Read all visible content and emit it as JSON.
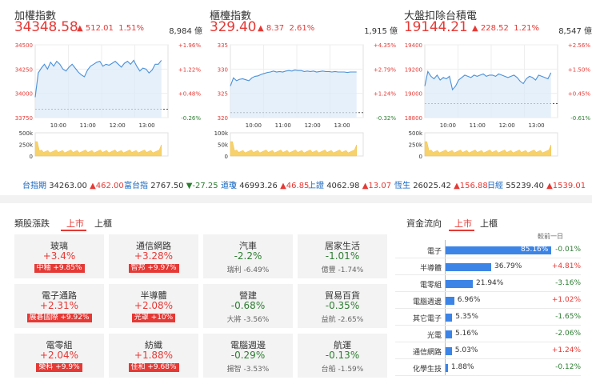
{
  "indices": [
    {
      "name": "加權指數",
      "price": "34348.58",
      "change": "512.01",
      "pct": "1.51%",
      "volume": "8,984 億",
      "y_labels": [
        "34500",
        "34250",
        "34000",
        "33750"
      ],
      "pct_labels": [
        "+1.96%",
        "+1.22%",
        "+0.48%",
        "-0.26%"
      ],
      "vol_labels": [
        "500k",
        "250k",
        "0"
      ],
      "x_labels": [
        "10:00",
        "11:00",
        "12:00",
        "13:00"
      ],
      "y_range": [
        33750,
        34500
      ],
      "prev_close": 33836.57,
      "series": [
        33960,
        34210,
        34260,
        34300,
        34250,
        34320,
        34280,
        34330,
        34300,
        34250,
        34230,
        34270,
        34300,
        34260,
        34220,
        34190,
        34170,
        34240,
        34280,
        34300,
        34320,
        34330,
        34280,
        34300,
        34290,
        34310,
        34330,
        34300,
        34270,
        34310,
        34330,
        34300,
        34340,
        34280,
        34230,
        34260,
        34250,
        34210,
        34240,
        34300,
        34300,
        34340
      ]
    },
    {
      "name": "櫃檯指數",
      "price": "329.40",
      "change": "8.37",
      "pct": "2.61%",
      "volume": "1,915 億",
      "y_labels": [
        "335",
        "330",
        "325",
        "320"
      ],
      "pct_labels": [
        "+4.35%",
        "+2.79%",
        "+1.24%",
        "-0.32%"
      ],
      "vol_labels": [
        "100k",
        "50k",
        "0"
      ],
      "x_labels": [
        "10:00",
        "11:00",
        "12:00",
        "13:00"
      ],
      "y_range": [
        320,
        335
      ],
      "prev_close": 321.03,
      "series": [
        326.5,
        328.2,
        327.6,
        327.9,
        328.0,
        327.8,
        327.6,
        328.2,
        328.5,
        328.6,
        328.9,
        329.1,
        329.3,
        329.4,
        329.6,
        329.4,
        329.5,
        329.4,
        329.6,
        329.7,
        329.6,
        329.8,
        329.7,
        329.7,
        329.5,
        329.6,
        329.5,
        329.6,
        329.4,
        329.5,
        329.6,
        329.5,
        329.5,
        329.4,
        329.5,
        329.4,
        329.4,
        329.4,
        329.3,
        329.4,
        329.4,
        329.4
      ]
    },
    {
      "name": "大盤扣除台積電",
      "price": "19144.21",
      "change": "228.52",
      "pct": "1.21%",
      "volume": "8,547 億",
      "y_labels": [
        "19400",
        "19200",
        "19000",
        "18800"
      ],
      "pct_labels": [
        "+2.56%",
        "+1.50%",
        "+0.45%",
        "-0.61%"
      ],
      "vol_labels": [
        "500k",
        "250k",
        "0"
      ],
      "x_labels": [
        "10:00",
        "11:00",
        "12:00",
        "13:00"
      ],
      "y_range": [
        18800,
        19400
      ],
      "prev_close": 18915.69,
      "series": [
        19060,
        19180,
        19140,
        19120,
        19150,
        19110,
        19130,
        19120,
        19140,
        19030,
        19060,
        19110,
        19130,
        19150,
        19140,
        19130,
        19150,
        19140,
        19150,
        19160,
        19140,
        19150,
        19150,
        19140,
        19160,
        19150,
        19140,
        19130,
        19140,
        19150,
        19130,
        19100,
        19080,
        19120,
        19140,
        19130,
        19110,
        19150,
        19140,
        19130,
        19120,
        19170
      ]
    }
  ],
  "tickers": [
    {
      "name": "台指期",
      "value": "34263.00",
      "change": "▲462.00",
      "dir": "up"
    },
    {
      "name": "富台指",
      "value": "2767.50",
      "change": "▼-27.25",
      "dir": "down"
    },
    {
      "name": "道瓊",
      "value": "46993.26",
      "change": "▲46.85",
      "dir": "up"
    },
    {
      "name": "上證",
      "value": "4062.98",
      "change": "▲13.07",
      "dir": "up"
    },
    {
      "name": "恆生",
      "value": "26025.42",
      "change": "▲156.88",
      "dir": "up"
    },
    {
      "name": "日經",
      "value": "55239.40",
      "change": "▲1539.01",
      "dir": "up"
    }
  ],
  "sector_section": {
    "title": "類股漲跌",
    "tabs": [
      "上市",
      "上櫃"
    ],
    "cards": [
      {
        "name": "玻璃",
        "pct": "+3.4%",
        "dir": "up",
        "stock": "中釉",
        "stock_pct": "+9.85%",
        "badge": true
      },
      {
        "name": "通信網路",
        "pct": "+3.28%",
        "dir": "up",
        "stock": "智邦",
        "stock_pct": "+9.97%",
        "badge": true
      },
      {
        "name": "汽車",
        "pct": "-2.2%",
        "dir": "down",
        "stock": "瑞利",
        "stock_pct": "-6.49%",
        "badge": false
      },
      {
        "name": "居家生活",
        "pct": "-1.01%",
        "dir": "down",
        "stock": "億豐",
        "stock_pct": "-1.74%",
        "badge": false
      },
      {
        "name": "電子通路",
        "pct": "+2.31%",
        "dir": "up",
        "stock": "展碁國際",
        "stock_pct": "+9.92%",
        "badge": true
      },
      {
        "name": "半導體",
        "pct": "+2.08%",
        "dir": "up",
        "stock": "光罩",
        "stock_pct": "+10%",
        "badge": true
      },
      {
        "name": "營建",
        "pct": "-0.68%",
        "dir": "down",
        "stock": "大將",
        "stock_pct": "-3.56%",
        "badge": false
      },
      {
        "name": "貿易百貨",
        "pct": "-0.35%",
        "dir": "down",
        "stock": "益航",
        "stock_pct": "-2.65%",
        "badge": false
      },
      {
        "name": "電零組",
        "pct": "+2.04%",
        "dir": "up",
        "stock": "榮科",
        "stock_pct": "+9.9%",
        "badge": true
      },
      {
        "name": "紡織",
        "pct": "+1.88%",
        "dir": "up",
        "stock": "佳和",
        "stock_pct": "+9.68%",
        "badge": true
      },
      {
        "name": "電腦週邊",
        "pct": "-0.29%",
        "dir": "down",
        "stock": "揚智",
        "stock_pct": "-3.53%",
        "badge": false
      },
      {
        "name": "航運",
        "pct": "-0.13%",
        "dir": "down",
        "stock": "台船",
        "stock_pct": "-1.59%",
        "badge": false
      }
    ]
  },
  "flow_section": {
    "title": "資金流向",
    "tabs": [
      "上市",
      "上櫃"
    ],
    "column_header": "較前一日",
    "rows": [
      {
        "name": "電子",
        "pct": 85.16,
        "label": "85.16%",
        "change": "-0.01%",
        "dir": "down"
      },
      {
        "name": "半導體",
        "pct": 36.79,
        "label": "36.79%",
        "change": "+4.81%",
        "dir": "up"
      },
      {
        "name": "電零組",
        "pct": 21.94,
        "label": "21.94%",
        "change": "-3.16%",
        "dir": "down"
      },
      {
        "name": "電腦週邊",
        "pct": 6.96,
        "label": "6.96%",
        "change": "+1.02%",
        "dir": "up"
      },
      {
        "name": "其它電子",
        "pct": 5.35,
        "label": "5.35%",
        "change": "-1.65%",
        "dir": "down"
      },
      {
        "name": "光電",
        "pct": 5.16,
        "label": "5.16%",
        "change": "-2.06%",
        "dir": "down"
      },
      {
        "name": "通信網路",
        "pct": 5.03,
        "label": "5.03%",
        "change": "+1.24%",
        "dir": "up"
      },
      {
        "name": "化學生技",
        "pct": 1.88,
        "label": "1.88%",
        "change": "-0.12%",
        "dir": "down"
      }
    ]
  }
}
